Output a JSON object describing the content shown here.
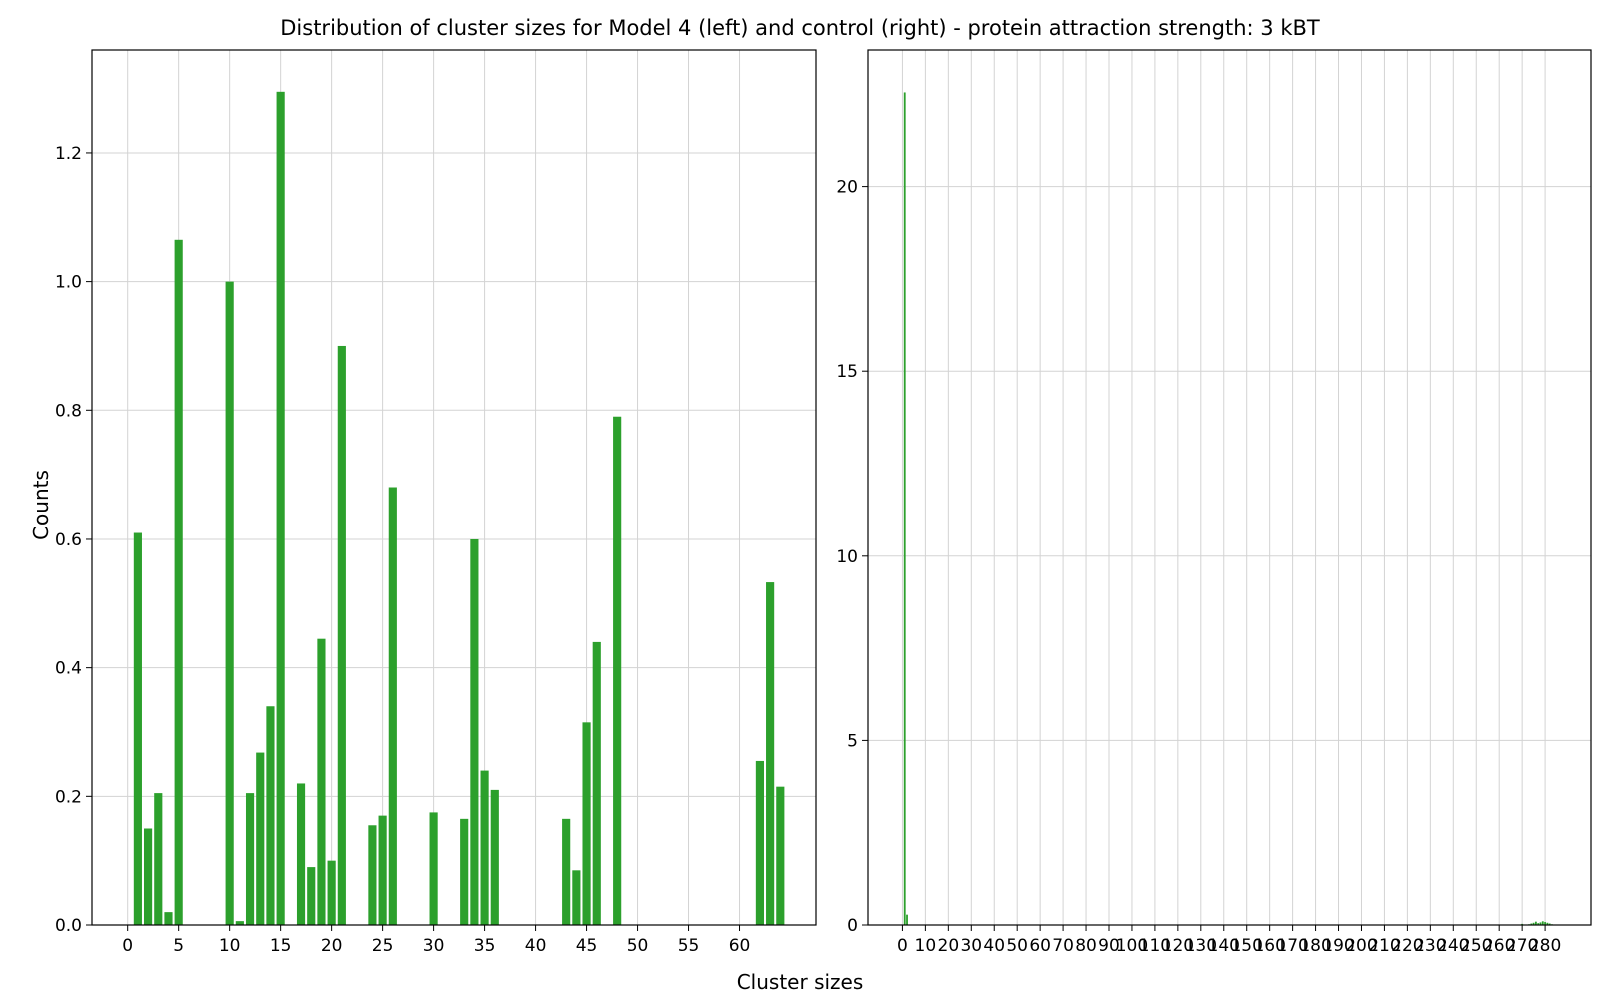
{
  "title": "Distribution of cluster sizes for Model 4 (left) and control (right) - protein attraction strength: 3 kBT",
  "xlabel": "Cluster sizes",
  "ylabel": "Counts",
  "colors": {
    "bar": "#2ca02c",
    "grid": "#d3d3d3",
    "axis": "#000000"
  },
  "chart_data": [
    {
      "type": "bar",
      "panel": "left",
      "x": [
        1,
        2,
        3,
        4,
        5,
        10,
        11,
        12,
        13,
        14,
        15,
        17,
        18,
        19,
        20,
        21,
        24,
        25,
        26,
        30,
        33,
        34,
        35,
        36,
        43,
        44,
        45,
        46,
        48,
        62,
        63,
        64
      ],
      "values": [
        0.61,
        0.15,
        0.205,
        0.02,
        1.065,
        1.0,
        0.006,
        0.205,
        0.268,
        0.34,
        1.295,
        0.22,
        0.09,
        0.445,
        0.1,
        0.9,
        0.155,
        0.17,
        0.68,
        0.175,
        0.165,
        0.6,
        0.24,
        0.21,
        0.165,
        0.085,
        0.315,
        0.44,
        0.79,
        0.255,
        0.533,
        0.215
      ],
      "xlim": [
        -3.5,
        67.5
      ],
      "ylim": [
        0,
        1.36
      ],
      "xticks": [
        0,
        5,
        10,
        15,
        20,
        25,
        30,
        35,
        40,
        45,
        50,
        55,
        60
      ],
      "xtick_labels": [
        "0",
        "5",
        "10",
        "15",
        "20",
        "25",
        "30",
        "35",
        "40",
        "45",
        "50",
        "55",
        "60"
      ],
      "yticks": [
        0,
        0.2,
        0.4,
        0.6,
        0.8,
        1.0,
        1.2
      ],
      "ytick_labels": [
        "0.0",
        "0.2",
        "0.4",
        "0.6",
        "0.8",
        "1.0",
        "1.2"
      ],
      "grid": true
    },
    {
      "type": "bar",
      "panel": "right",
      "x": [
        1,
        2,
        270,
        273,
        274,
        275,
        276,
        277,
        278,
        279,
        280,
        281,
        282,
        283
      ],
      "values": [
        22.55,
        0.28,
        0.03,
        0.02,
        0.04,
        0.06,
        0.09,
        0.05,
        0.07,
        0.1,
        0.08,
        0.06,
        0.04,
        0.02
      ],
      "xlim": [
        -15,
        300
      ],
      "ylim": [
        0,
        23.7
      ],
      "xticks": [
        0,
        10,
        20,
        30,
        40,
        50,
        60,
        70,
        80,
        90,
        100,
        110,
        120,
        130,
        140,
        150,
        160,
        170,
        180,
        190,
        200,
        210,
        220,
        230,
        240,
        250,
        260,
        270,
        280
      ],
      "xtick_labels": [
        "0",
        "10",
        "20",
        "30",
        "40",
        "50",
        "60",
        "70",
        "80",
        "90",
        "100",
        "110",
        "120",
        "130",
        "140",
        "150",
        "160",
        "170",
        "180",
        "190",
        "200",
        "210",
        "220",
        "230",
        "240",
        "250",
        "260",
        "270",
        "280"
      ],
      "yticks": [
        0,
        5,
        10,
        15,
        20
      ],
      "ytick_labels": [
        "0",
        "5",
        "10",
        "15",
        "20"
      ],
      "grid": true
    }
  ]
}
